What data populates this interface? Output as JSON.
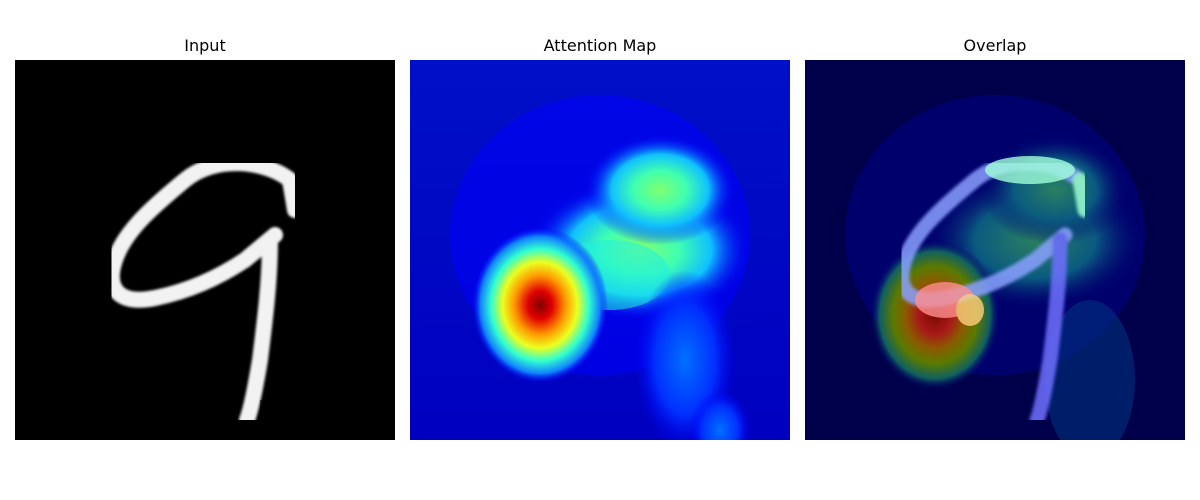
{
  "panels": [
    {
      "title": "Input"
    },
    {
      "title": "Attention Map"
    },
    {
      "title": "Overlap"
    }
  ],
  "colors": {
    "background": "#ffffff",
    "digit_stroke": "#f2f2f2",
    "attention_low": "#0000b0",
    "attention_peak": "#800000"
  }
}
